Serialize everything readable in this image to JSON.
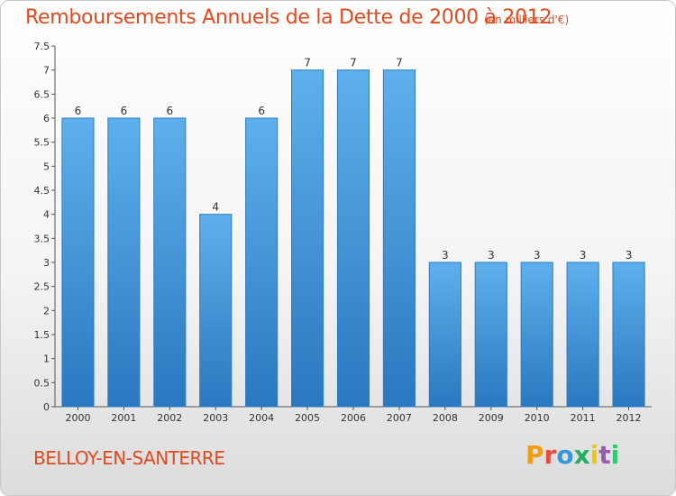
{
  "header": {
    "title": "Remboursements Annuels de la Dette de 2000 à 2012",
    "subtitle": "(en milliers d'€)"
  },
  "footer": {
    "commune": "BELLOY-EN-SANTERRE",
    "brand": "Proxiti",
    "brand_colors": [
      "#f39c12",
      "#e74c3c",
      "#3498db",
      "#27ae60",
      "#f1c40f",
      "#9b59b6",
      "#2ecc71"
    ]
  },
  "chart_data": {
    "type": "bar",
    "categories": [
      "2000",
      "2001",
      "2002",
      "2003",
      "2004",
      "2005",
      "2006",
      "2007",
      "2008",
      "2009",
      "2010",
      "2011",
      "2012"
    ],
    "values": [
      6,
      6,
      6,
      4,
      6,
      7,
      7,
      7,
      3,
      3,
      3,
      3,
      3
    ],
    "data_labels": [
      "6",
      "6",
      "6",
      "4",
      "6",
      "7",
      "7",
      "7",
      "3",
      "3",
      "3",
      "3",
      "3"
    ],
    "y_ticks": [
      "0",
      "0.5",
      "1",
      "1.5",
      "2",
      "2.5",
      "3",
      "3.5",
      "4",
      "4.5",
      "5",
      "5.5",
      "6",
      "6.5",
      "7",
      "7.5"
    ],
    "ylim": [
      0,
      7.5
    ],
    "grid": false,
    "bar_color": "#4a9be0"
  }
}
